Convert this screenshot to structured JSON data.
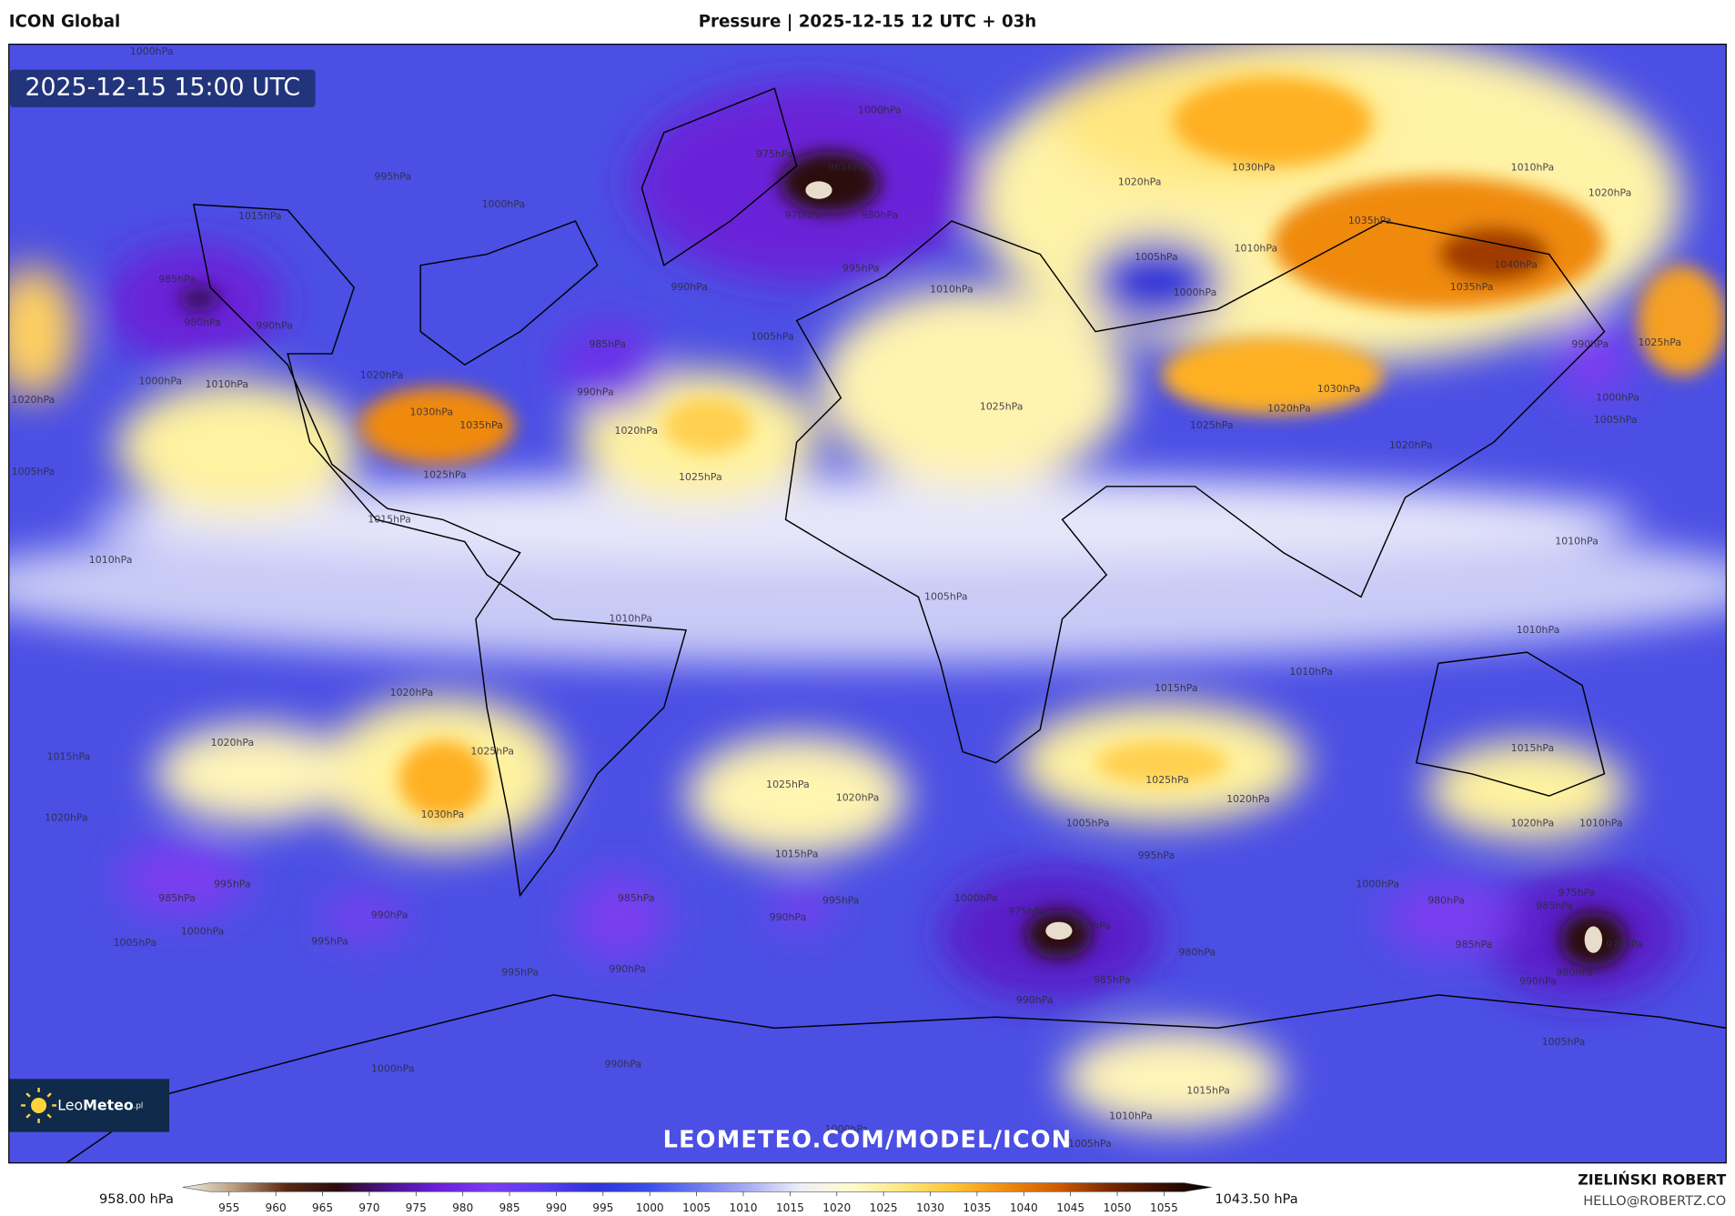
{
  "header": {
    "model": "ICON Global",
    "title": "Pressure | 2025-12-15 12 UTC + 03h"
  },
  "timestamp": "2025-12-15 15:00 UTC",
  "watermark": "LEOMETEO.COM/MODEL/ICON",
  "logo": {
    "light": "Leo",
    "bold": "Meteo",
    "suffix": ".pl"
  },
  "colorbar": {
    "min_label": "958.00 hPa",
    "max_label": "1043.50 hPa",
    "ticks": [
      955,
      960,
      965,
      970,
      975,
      980,
      985,
      990,
      995,
      1000,
      1005,
      1010,
      1015,
      1020,
      1025,
      1030,
      1035,
      1040,
      1045,
      1050,
      1055
    ]
  },
  "author": {
    "name": "ZIELIŃSKI ROBERT",
    "email": "HELLO@ROBERTZ.CO"
  },
  "isobar_labels": [
    "1000hPa",
    "1000hPa",
    "975hPa",
    "965hPa",
    "970hPa",
    "980hPa",
    "995hPa",
    "1000hPa",
    "1015hPa",
    "985hPa",
    "980hPa",
    "990hPa",
    "1000hPa",
    "1010hPa",
    "1020hPa",
    "1030hPa",
    "1035hPa",
    "1025hPa",
    "1015hPa",
    "1020hPa",
    "1025hPa",
    "990hPa",
    "985hPa",
    "990hPa",
    "995hPa",
    "1005hPa",
    "1010hPa",
    "1030hPa",
    "1020hPa",
    "1010hPa",
    "1020hPa",
    "1035hPa",
    "1040hPa",
    "1035hPa",
    "1005hPa",
    "1000hPa",
    "1010hPa",
    "990hPa",
    "1000hPa",
    "1005hPa",
    "1025hPa",
    "1025hPa",
    "1025hPa",
    "1020hPa",
    "1030hPa",
    "1020hPa",
    "1010hPa",
    "1010hPa",
    "1010hPa",
    "1010hPa",
    "1005hPa",
    "1010hPa",
    "1005hPa",
    "1020hPa",
    "1015hPa",
    "1025hPa",
    "1020hPa",
    "1005hPa",
    "995hPa",
    "1000hPa",
    "1015hPa",
    "1025hPa",
    "1020hPa",
    "1020hPa",
    "1025hPa",
    "1030hPa",
    "1020hPa",
    "1015hPa",
    "1020hPa",
    "985hPa",
    "995hPa",
    "1005hPa",
    "1000hPa",
    "990hPa",
    "995hPa",
    "985hPa",
    "990hPa",
    "995hPa",
    "990hPa",
    "995hPa",
    "975hPa",
    "965hPa",
    "970hPa",
    "980hPa",
    "985hPa",
    "990hPa",
    "1000hPa",
    "980hPa",
    "985hPa",
    "985hPa",
    "975hPa",
    "980hPa",
    "970hPa",
    "990hPa",
    "1005hPa",
    "1000hPa",
    "990hPa",
    "1015hPa",
    "1010hPa",
    "1005hPa",
    "1000hPa",
    "1015hPa",
    "1020hPa",
    "1010hPa"
  ]
}
